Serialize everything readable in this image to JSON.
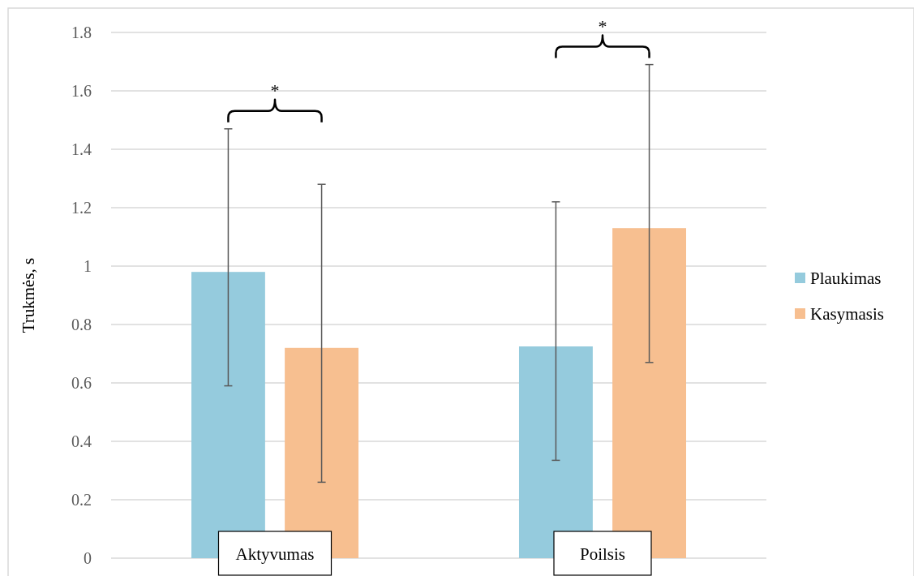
{
  "chart_data": {
    "type": "bar",
    "ylabel": "Trukmės, s",
    "categories": [
      "Aktyvumas",
      "Poilsis"
    ],
    "series": [
      {
        "name": "Plaukimas",
        "color": "#95cbdd",
        "values": [
          0.98,
          0.725
        ],
        "errors": [
          [
            0.59,
            1.47
          ],
          [
            0.335,
            1.22
          ]
        ]
      },
      {
        "name": "Kasymasis",
        "color": "#f7bf90",
        "values": [
          0.72,
          1.13
        ],
        "errors": [
          [
            0.26,
            1.28
          ],
          [
            0.67,
            1.69
          ]
        ]
      }
    ],
    "ylim": [
      0,
      1.8
    ],
    "yticks": [
      0,
      0.2,
      0.4,
      0.6,
      0.8,
      1,
      1.2,
      1.4,
      1.6,
      1.8
    ],
    "grid": "y",
    "legend": "right",
    "annotations": [
      "*",
      "*"
    ]
  }
}
